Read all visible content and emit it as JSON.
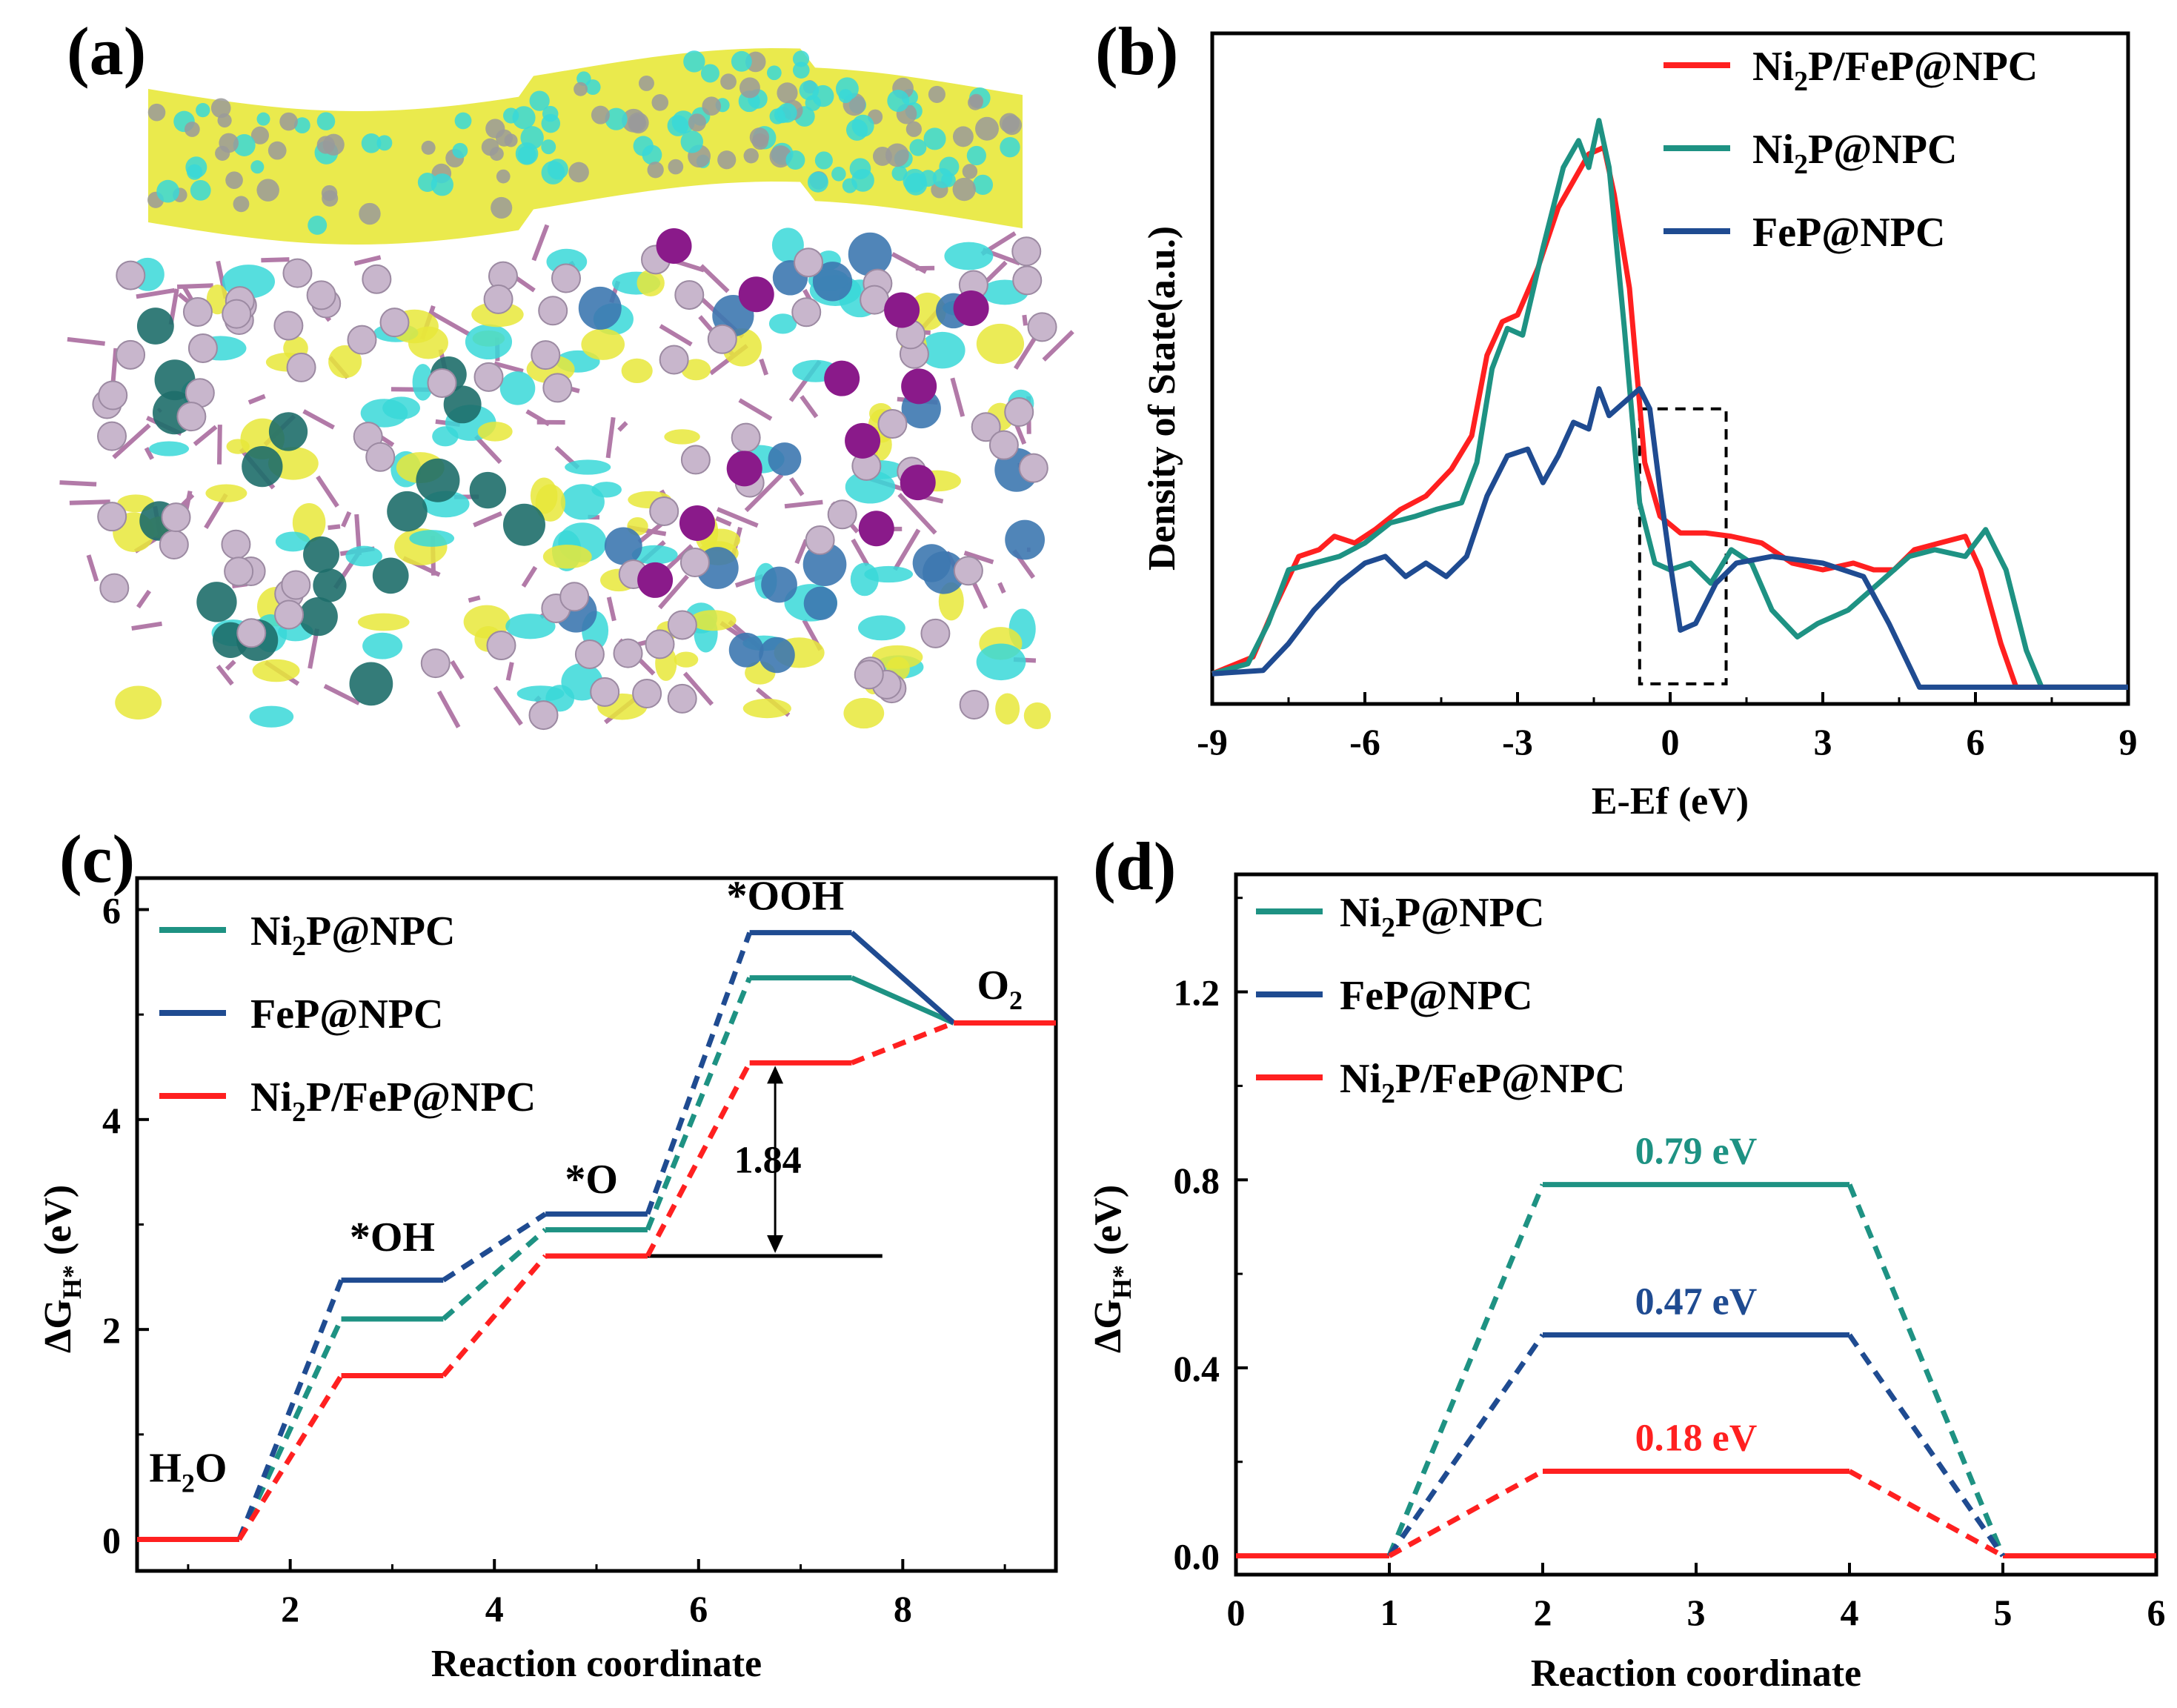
{
  "panels": {
    "a": {
      "label": "(a)"
    },
    "b": {
      "label": "(b)"
    },
    "c": {
      "label": "(c)"
    },
    "d": {
      "label": "(d)"
    }
  },
  "colors": {
    "red": "#ff2020",
    "teal": "#1e9283",
    "blue": "#1f4b91",
    "black": "#000000",
    "yellow": "#e8e83a",
    "cyan": "#38d8d8",
    "pink": "#c8b6cc",
    "purple": "#8a1a8a",
    "gray": "#9a9a9a"
  },
  "chart_data": [
    {
      "id": "b",
      "type": "line",
      "title": "",
      "xlabel": "E-Ef (eV)",
      "ylabel": "Density of State(a.u.)",
      "xlim": [
        -9,
        9
      ],
      "ylim": [
        0,
        1
      ],
      "xticks": [
        -9,
        -6,
        -3,
        0,
        3,
        6,
        9
      ],
      "xtick_labels": [
        "-9",
        "-6",
        "-3",
        "0",
        "3",
        "6",
        "9"
      ],
      "legend": [
        {
          "pre": "Ni",
          "sub": "2",
          "post": "P/FeP@NPC",
          "color": "#ff2020"
        },
        {
          "pre": "Ni",
          "sub": "2",
          "post": "P@NPC",
          "color": "#1e9283"
        },
        {
          "pre": "FeP@NPC",
          "sub": "",
          "post": "",
          "color": "#1f4b91"
        }
      ],
      "legend_position": "top-right",
      "highlight_box": {
        "x": [
          -0.6,
          1.1
        ],
        "y": [
          0.03,
          0.44
        ]
      },
      "series": [
        {
          "name": "Ni2P/FeP@NPC",
          "color": "#ff2020",
          "x": [
            -9,
            -8.2,
            -7.8,
            -7.3,
            -6.9,
            -6.6,
            -6.2,
            -5.8,
            -5.3,
            -4.8,
            -4.3,
            -3.9,
            -3.6,
            -3.3,
            -3.0,
            -2.6,
            -2.2,
            -1.9,
            -1.6,
            -1.3,
            -1.1,
            -0.8,
            -0.5,
            -0.2,
            0.2,
            0.7,
            1.2,
            1.8,
            2.4,
            3.0,
            3.6,
            4.0,
            4.4,
            4.8,
            5.3,
            5.8,
            6.1,
            6.5,
            6.8,
            8,
            9
          ],
          "y": [
            0.045,
            0.07,
            0.14,
            0.22,
            0.23,
            0.25,
            0.24,
            0.26,
            0.29,
            0.31,
            0.35,
            0.4,
            0.52,
            0.57,
            0.58,
            0.65,
            0.74,
            0.78,
            0.82,
            0.83,
            0.76,
            0.62,
            0.36,
            0.28,
            0.255,
            0.255,
            0.25,
            0.24,
            0.21,
            0.2,
            0.21,
            0.2,
            0.2,
            0.23,
            0.24,
            0.25,
            0.2,
            0.09,
            0.025,
            0.025,
            0.025
          ]
        },
        {
          "name": "Ni2P@NPC",
          "color": "#1e9283",
          "x": [
            -9,
            -8.3,
            -7.9,
            -7.5,
            -7.0,
            -6.5,
            -6.0,
            -5.5,
            -5.0,
            -4.6,
            -4.1,
            -3.8,
            -3.5,
            -3.2,
            -2.9,
            -2.5,
            -2.1,
            -1.8,
            -1.6,
            -1.4,
            -1.2,
            -0.9,
            -0.6,
            -0.3,
            0.0,
            0.4,
            0.8,
            1.2,
            1.6,
            2.0,
            2.5,
            2.9,
            3.5,
            4.1,
            4.7,
            5.2,
            5.8,
            6.2,
            6.6,
            7.0,
            7.3,
            8,
            9
          ],
          "y": [
            0.045,
            0.06,
            0.12,
            0.2,
            0.21,
            0.22,
            0.24,
            0.27,
            0.28,
            0.29,
            0.3,
            0.36,
            0.5,
            0.56,
            0.55,
            0.68,
            0.8,
            0.84,
            0.8,
            0.87,
            0.8,
            0.56,
            0.3,
            0.21,
            0.2,
            0.21,
            0.18,
            0.23,
            0.21,
            0.14,
            0.1,
            0.12,
            0.14,
            0.18,
            0.22,
            0.23,
            0.22,
            0.26,
            0.2,
            0.08,
            0.025,
            0.025,
            0.025
          ]
        },
        {
          "name": "FeP@NPC",
          "color": "#1f4b91",
          "x": [
            -9,
            -8.0,
            -7.5,
            -7.0,
            -6.5,
            -6.0,
            -5.6,
            -5.2,
            -4.8,
            -4.4,
            -4.0,
            -3.6,
            -3.2,
            -2.8,
            -2.5,
            -2.2,
            -1.9,
            -1.6,
            -1.4,
            -1.2,
            -0.9,
            -0.6,
            -0.4,
            -0.2,
            0.0,
            0.2,
            0.5,
            0.9,
            1.3,
            2.0,
            3.0,
            3.8,
            4.3,
            4.9,
            6.0,
            8,
            9
          ],
          "y": [
            0.045,
            0.05,
            0.09,
            0.14,
            0.18,
            0.21,
            0.22,
            0.19,
            0.21,
            0.19,
            0.22,
            0.31,
            0.37,
            0.38,
            0.33,
            0.37,
            0.42,
            0.41,
            0.47,
            0.43,
            0.45,
            0.47,
            0.44,
            0.32,
            0.21,
            0.11,
            0.12,
            0.18,
            0.21,
            0.22,
            0.21,
            0.19,
            0.12,
            0.025,
            0.025,
            0.025,
            0.025
          ]
        }
      ]
    },
    {
      "id": "c",
      "type": "line",
      "title": "",
      "xlabel": "Reaction coordinate",
      "ylabel_main": "ΔG",
      "ylabel_sub": "H*",
      "ylabel_tail": " (eV)",
      "xlim": [
        0.5,
        9.5
      ],
      "ylim": [
        -0.3,
        6.3
      ],
      "xticks": [
        2,
        4,
        6,
        8
      ],
      "xtick_labels": [
        "2",
        "4",
        "6",
        "8"
      ],
      "yticks": [
        0,
        2,
        4,
        6
      ],
      "ytick_labels": [
        "0",
        "2",
        "4",
        "6"
      ],
      "legend": [
        {
          "pre": "Ni",
          "sub": "2",
          "post": "P@NPC",
          "color": "#1e9283"
        },
        {
          "pre": "FeP@NPC",
          "sub": "",
          "post": "",
          "color": "#1f4b91"
        },
        {
          "pre": "Ni",
          "sub": "2",
          "post": "P/FeP@NPC",
          "color": "#ff2020"
        }
      ],
      "legend_position": "top-left",
      "steps": [
        "H2O",
        "*OH",
        "*O",
        "*OOH",
        "O2"
      ],
      "step_labels": [
        {
          "text_pre": "H",
          "sub": "2",
          "text_post": "O",
          "x": 1.0,
          "y": 0.55
        },
        {
          "text_pre": "*OH",
          "sub": "",
          "text_post": "",
          "x": 3.0,
          "y": 2.75
        },
        {
          "text_pre": "*O",
          "sub": "",
          "text_post": "",
          "x": 4.95,
          "y": 3.3
        },
        {
          "text_pre": "*OOH",
          "sub": "",
          "text_post": "",
          "x": 6.85,
          "y": 6.0
        },
        {
          "text_pre": "O",
          "sub": "2",
          "text_post": "",
          "x": 8.95,
          "y": 5.15
        }
      ],
      "annotation": {
        "text": "1.84",
        "x": 6.75,
        "y_from": 2.7,
        "y_to": 4.54,
        "ref_line_x": [
          5.5,
          7.8
        ]
      },
      "series": [
        {
          "name": "Ni2P@NPC",
          "color": "#1e9283",
          "levels": [
            0,
            2.1,
            2.95,
            5.35,
            4.92
          ]
        },
        {
          "name": "FeP@NPC",
          "color": "#1f4b91",
          "levels": [
            0,
            2.47,
            3.1,
            5.78,
            4.92
          ]
        },
        {
          "name": "Ni2P/FeP@NPC",
          "color": "#ff2020",
          "levels": [
            0,
            1.56,
            2.7,
            4.54,
            4.92
          ]
        }
      ]
    },
    {
      "id": "d",
      "type": "line",
      "title": "",
      "xlabel": "Reaction coordinate",
      "ylabel_main": "ΔG",
      "ylabel_sub": "H*",
      "ylabel_tail": " (eV)",
      "xlim": [
        0,
        6
      ],
      "ylim": [
        -0.04,
        1.45
      ],
      "xticks": [
        0,
        1,
        2,
        3,
        4,
        5,
        6
      ],
      "xtick_labels": [
        "0",
        "1",
        "2",
        "3",
        "4",
        "5",
        "6"
      ],
      "yticks": [
        0.0,
        0.4,
        0.8,
        1.2
      ],
      "ytick_labels": [
        "0.0",
        "0.4",
        "0.8",
        "1.2"
      ],
      "legend": [
        {
          "pre": "Ni",
          "sub": "2",
          "post": "P@NPC",
          "color": "#1e9283"
        },
        {
          "pre": "FeP@NPC",
          "sub": "",
          "post": "",
          "color": "#1f4b91"
        },
        {
          "pre": "Ni",
          "sub": "2",
          "post": "P/FeP@NPC",
          "color": "#ff2020"
        }
      ],
      "legend_position": "top-left",
      "series": [
        {
          "name": "Ni2P@NPC",
          "color": "#1e9283",
          "value": 0.79,
          "label": "0.79 eV"
        },
        {
          "name": "FeP@NPC",
          "color": "#1f4b91",
          "value": 0.47,
          "label": "0.47 eV"
        },
        {
          "name": "Ni2P/FeP@NPC",
          "color": "#ff2020",
          "value": 0.18,
          "label": "0.18 eV"
        }
      ]
    }
  ]
}
